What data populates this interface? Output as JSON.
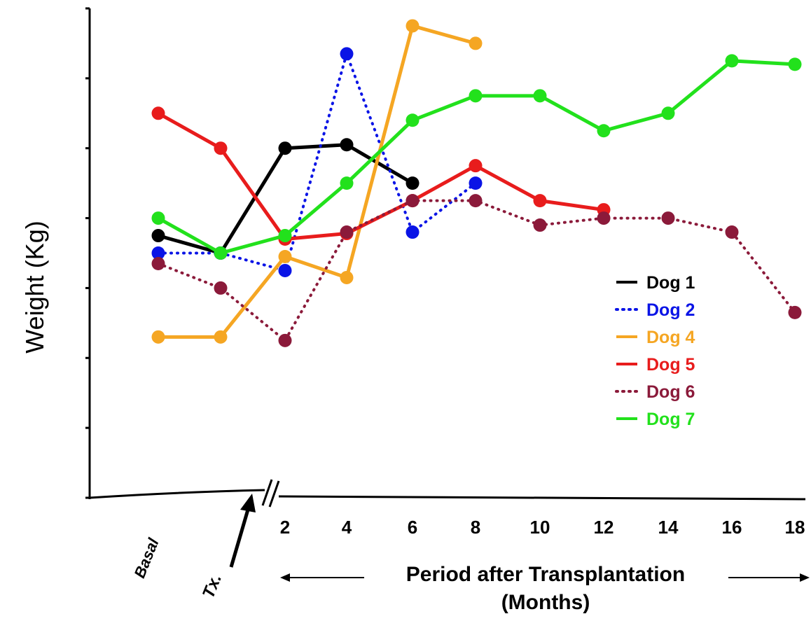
{
  "chart_data": {
    "type": "line",
    "ylabel": "Weight (Kg)",
    "xlabel_line1": "Period after Transplantation",
    "xlabel_line2": "(Months)",
    "categories": [
      "Basal",
      "Tx.",
      "2",
      "4",
      "6",
      "8",
      "10",
      "12",
      "14",
      "16",
      "18"
    ],
    "y_ticks_count": 7,
    "ylim": [
      0,
      7
    ],
    "grid": false,
    "legend_position": "right",
    "series": [
      {
        "name": "Dog 1",
        "color": "#000000",
        "dash": "solid",
        "points": [
          [
            0,
            3.75
          ],
          [
            1,
            3.5
          ],
          [
            2,
            5.0
          ],
          [
            3,
            5.05
          ],
          [
            4,
            4.5
          ]
        ]
      },
      {
        "name": "Dog 2",
        "color": "#0a14e6",
        "dash": "dotted",
        "points": [
          [
            0,
            3.5
          ],
          [
            1,
            3.5
          ],
          [
            2,
            3.25
          ],
          [
            3,
            6.35
          ],
          [
            4,
            3.8
          ],
          [
            5,
            4.5
          ]
        ]
      },
      {
        "name": "Dog 4",
        "color": "#f5a623",
        "dash": "solid",
        "points": [
          [
            0,
            2.3
          ],
          [
            1,
            2.3
          ],
          [
            2,
            3.45
          ],
          [
            3,
            3.15
          ],
          [
            4,
            6.75
          ],
          [
            5,
            6.5
          ]
        ]
      },
      {
        "name": "Dog 5",
        "color": "#e81c1c",
        "dash": "solid",
        "points": [
          [
            0,
            5.5
          ],
          [
            1,
            5.0
          ],
          [
            2,
            3.7
          ],
          [
            3,
            3.78
          ],
          [
            4,
            4.25
          ],
          [
            5,
            4.75
          ],
          [
            6,
            4.25
          ],
          [
            7,
            4.12
          ]
        ]
      },
      {
        "name": "Dog 6",
        "color": "#8b1a3a",
        "dash": "dotted",
        "points": [
          [
            0,
            3.35
          ],
          [
            1,
            3.0
          ],
          [
            2,
            2.25
          ],
          [
            3,
            3.8
          ],
          [
            4,
            4.25
          ],
          [
            5,
            4.25
          ],
          [
            6,
            3.9
          ],
          [
            7,
            4.0
          ],
          [
            8,
            4.0
          ],
          [
            9,
            3.8
          ],
          [
            10,
            2.65
          ]
        ]
      },
      {
        "name": "Dog 7",
        "color": "#22e11c",
        "dash": "solid",
        "points": [
          [
            0,
            4.0
          ],
          [
            1,
            3.5
          ],
          [
            2,
            3.75
          ],
          [
            3,
            4.5
          ],
          [
            4,
            5.4
          ],
          [
            5,
            5.75
          ],
          [
            6,
            5.75
          ],
          [
            7,
            5.25
          ],
          [
            8,
            5.5
          ],
          [
            9,
            6.25
          ],
          [
            10,
            6.2
          ]
        ]
      }
    ]
  }
}
